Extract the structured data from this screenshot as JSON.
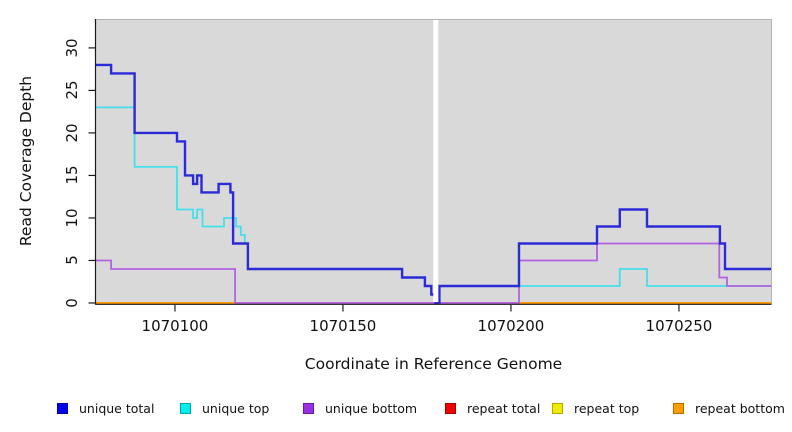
{
  "chart_data": {
    "type": "line",
    "step": true,
    "title": "",
    "xlabel": "Coordinate in Reference Genome",
    "ylabel": "Read Coverage Depth",
    "x_range": [
      1070076.5,
      1070277.4
    ],
    "ylim": [
      -0.12,
      33.4
    ],
    "grid": false,
    "plot_background": "#d9d9d9",
    "box_border_color": "#b3b3b3",
    "axis_color": "#1a1a1a",
    "xticks": [
      {
        "value": 1070100,
        "label": "1070100"
      },
      {
        "value": 1070150,
        "label": "1070150"
      },
      {
        "value": 1070200,
        "label": "1070200"
      },
      {
        "value": 1070250,
        "label": "1070250"
      }
    ],
    "yticks": [
      {
        "value": 0,
        "label": "0"
      },
      {
        "value": 5,
        "label": "5"
      },
      {
        "value": 10,
        "label": "10"
      },
      {
        "value": 15,
        "label": "15"
      },
      {
        "value": 20,
        "label": "20"
      },
      {
        "value": 25,
        "label": "25"
      },
      {
        "value": 30,
        "label": "30"
      }
    ],
    "gap": {
      "x_start": 1070176.9,
      "x_end": 1070178.4,
      "color": "#ffffff",
      "note": "white vertical bar, no data"
    },
    "layers": [
      {
        "label": "repeat top",
        "color": "#f2e400",
        "width": 1.5,
        "end": 1070277.4,
        "steps": [
          [
            1070076.5,
            0
          ]
        ]
      },
      {
        "label": "repeat total",
        "color": "#e60000",
        "width": 1.5,
        "end": 1070277.4,
        "steps": [
          [
            1070076.5,
            0
          ]
        ]
      },
      {
        "label": "repeat bottom",
        "color": "#ff9900",
        "width": 2,
        "end": 1070277.4,
        "steps": [
          [
            1070076.5,
            0
          ]
        ]
      },
      {
        "label": "unique bottom zero-overlap tint",
        "color": "#d4567e",
        "width": 2,
        "overlay": true,
        "end": 1070202.4,
        "steps": [
          [
            1070117.9,
            0
          ]
        ]
      },
      {
        "label": "unique top",
        "color": "#45dfe8",
        "width": 1.8,
        "end": 1070277.4,
        "steps": [
          [
            1070076.5,
            23
          ],
          [
            1070088,
            16
          ],
          [
            1070100.6,
            11
          ],
          [
            1070105.4,
            10
          ],
          [
            1070106.6,
            11
          ],
          [
            1070108.2,
            9
          ],
          [
            1070114.6,
            10
          ],
          [
            1070118.2,
            9
          ],
          [
            1070119.6,
            8
          ],
          [
            1070120.8,
            7
          ],
          [
            1070121.7,
            4
          ],
          [
            1070167.6,
            3
          ],
          [
            1070174.4,
            2
          ],
          [
            1070176.3,
            1
          ],
          [
            1070177.6,
            0
          ],
          [
            1070178.7,
            2
          ],
          [
            1070232.4,
            4
          ],
          [
            1070240.5,
            2
          ]
        ]
      },
      {
        "label": "unique bottom",
        "color": "#b163e2",
        "width": 1.8,
        "end": 1070277.4,
        "steps": [
          [
            1070076.5,
            5
          ],
          [
            1070081,
            4
          ],
          [
            1070117.9,
            0
          ],
          [
            1070202.4,
            5
          ],
          [
            1070225.6,
            7
          ],
          [
            1070262,
            3
          ],
          [
            1070264.3,
            2
          ]
        ]
      },
      {
        "label": "unique total",
        "color": "#2a2ad6",
        "width": 2.4,
        "end": 1070277.4,
        "steps": [
          [
            1070076.5,
            28
          ],
          [
            1070081,
            27
          ],
          [
            1070088,
            20
          ],
          [
            1070100.6,
            19
          ],
          [
            1070103,
            15
          ],
          [
            1070105.4,
            14
          ],
          [
            1070106.6,
            15
          ],
          [
            1070107.9,
            13
          ],
          [
            1070113,
            14
          ],
          [
            1070116.5,
            13
          ],
          [
            1070117.3,
            7
          ],
          [
            1070121.7,
            4
          ],
          [
            1070167.6,
            3
          ],
          [
            1070174.4,
            2
          ],
          [
            1070176.3,
            1
          ],
          [
            1070177.6,
            0
          ],
          [
            1070178.7,
            2
          ],
          [
            1070202.4,
            7
          ],
          [
            1070225.6,
            9
          ],
          [
            1070232.4,
            11
          ],
          [
            1070240.5,
            9
          ],
          [
            1070262.2,
            7
          ],
          [
            1070263.7,
            4
          ]
        ]
      }
    ],
    "legend": {
      "position": "bottom",
      "items": [
        {
          "label": "unique total",
          "fill": "#0000ee",
          "border": "#0000a8"
        },
        {
          "label": "unique top",
          "fill": "#00eeee",
          "border": "#00a8b4"
        },
        {
          "label": "unique bottom",
          "fill": "#9b30e2",
          "border": "#6a1a9e"
        },
        {
          "label": "repeat total",
          "fill": "#ee0000",
          "border": "#a80000"
        },
        {
          "label": "repeat top",
          "fill": "#f0e900",
          "border": "#b4a800"
        },
        {
          "label": "repeat bottom",
          "fill": "#ff9d00",
          "border": "#b46e00"
        }
      ]
    }
  }
}
